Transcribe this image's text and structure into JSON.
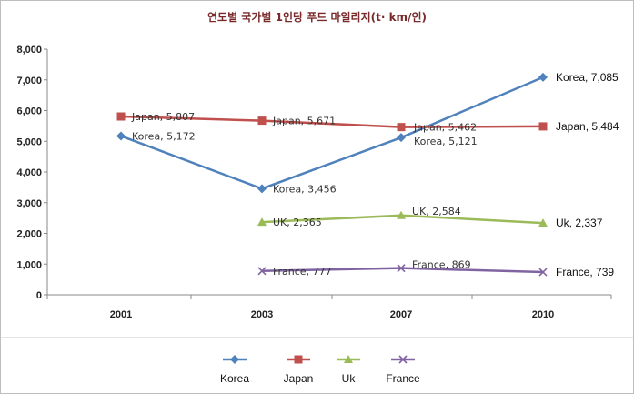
{
  "chart_data": {
    "type": "line",
    "title": "연도별 국가별 1인당 푸드 마일리지(t· km/인)",
    "categories": [
      "2001",
      "2003",
      "2007",
      "2010"
    ],
    "ylim": [
      0,
      8000
    ],
    "yticks": [
      "0",
      "1,000",
      "2,000",
      "3,000",
      "4,000",
      "5,000",
      "6,000",
      "7,000",
      "8,000"
    ],
    "grid": false,
    "legend_position": "bottom",
    "series": [
      {
        "name": "Korea",
        "color": "#4f81bd",
        "marker": "diamond",
        "values": [
          5172,
          3456,
          5121,
          7085
        ],
        "labels": [
          "Korea, 5,172",
          "Korea, 3,456",
          "Korea, 5,121",
          "Korea, 7,085"
        ]
      },
      {
        "name": "Japan",
        "color": "#c0504d",
        "marker": "square",
        "values": [
          5807,
          5671,
          5462,
          5484
        ],
        "labels": [
          "Japan, 5,807",
          "Japan, 5,671",
          "Japan, 5,462",
          "Japan, 5,484"
        ]
      },
      {
        "name": "Uk",
        "color": "#9bbb59",
        "marker": "triangle",
        "values": [
          null,
          2365,
          2584,
          2337
        ],
        "labels": [
          null,
          "UK, 2,365",
          "UK, 2,584",
          "Uk, 2,337"
        ]
      },
      {
        "name": "France",
        "color": "#8064a2",
        "marker": "x",
        "values": [
          null,
          777,
          869,
          739
        ],
        "labels": [
          null,
          "France, 777",
          "France, 869",
          "France, 739"
        ]
      }
    ]
  }
}
